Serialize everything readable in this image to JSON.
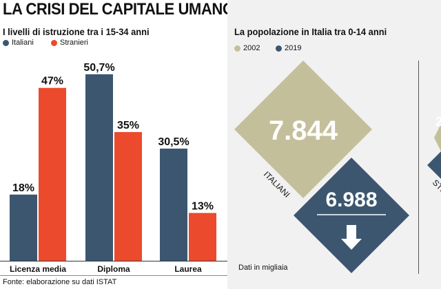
{
  "header": {
    "title": "LA CRISI DEL CAPITALE UMANO"
  },
  "chart_data": [
    {
      "type": "bar",
      "title": "I livelli di istruzione tra i 15-34 anni",
      "categories": [
        "Licenza media",
        "Diploma",
        "Laurea"
      ],
      "series": [
        {
          "name": "Italiani",
          "color": "#3c5670",
          "values": [
            18,
            50.7,
            30.5
          ],
          "labels": [
            "18%",
            "50,7%",
            "30,5%"
          ]
        },
        {
          "name": "Stranieri",
          "color": "#ec4a2c",
          "values": [
            47,
            35,
            13
          ],
          "labels": [
            "47%",
            "35%",
            "13%"
          ]
        }
      ],
      "ylim": [
        0,
        52
      ]
    },
    {
      "type": "table",
      "title": "La popolazione in Italia tra 0-14 anni",
      "legend": [
        {
          "name": "2002",
          "color": "#c4bf9b"
        },
        {
          "name": "2019",
          "color": "#3c5670"
        }
      ],
      "groups": [
        {
          "label": "ITALIANI",
          "value_2002": "7.844",
          "value_2019": "6.988",
          "trend": "down"
        }
      ],
      "partial_second_group": {
        "label": "STR",
        "value_2002_fragment": "2"
      },
      "note": "Dati in migliaia"
    }
  ],
  "footer": {
    "source": "Fonte: elaborazione su dati ISTAT"
  },
  "icons": {
    "down_arrow": "arrow-down-icon"
  }
}
